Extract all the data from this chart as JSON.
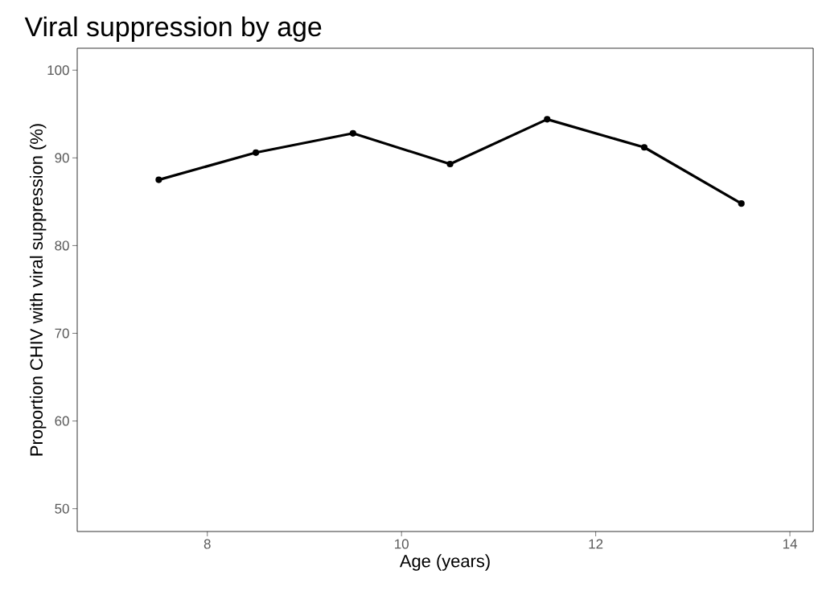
{
  "chart_data": {
    "type": "line",
    "title": "Viral suppression by age",
    "xlabel": "Age (years)",
    "ylabel": "Proportion CHIV with viral suppression (%)",
    "x": [
      7.5,
      8.5,
      9.5,
      10.5,
      11.5,
      12.5,
      13.5
    ],
    "series": [
      {
        "color": "#000000",
        "values": [
          87.5,
          90.6,
          92.8,
          89.3,
          94.4,
          91.2,
          84.8
        ]
      }
    ],
    "xlim": [
      6.66,
      14.24
    ],
    "ylim": [
      47.4,
      102.5
    ],
    "xticks": [
      8,
      10,
      12,
      14
    ],
    "yticks": [
      50,
      60,
      70,
      80,
      90,
      100
    ],
    "grid": false,
    "marker": "circle",
    "line_style": "solid"
  }
}
